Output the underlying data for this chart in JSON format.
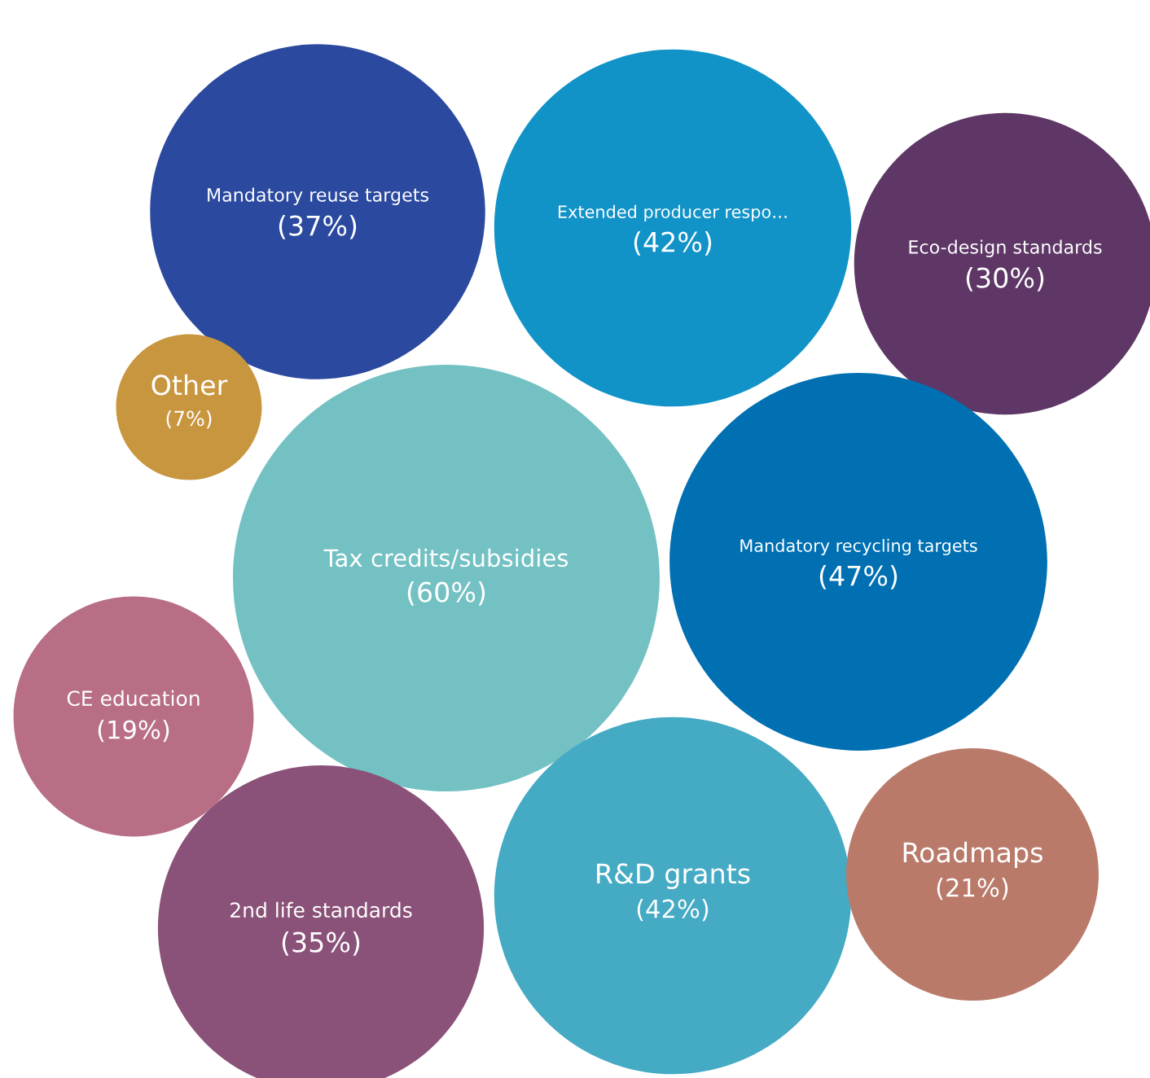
{
  "chart_data": {
    "type": "other",
    "categories": [
      "Mandatory reuse targets",
      "Extended producer respo…",
      "Eco-design standards",
      "Other",
      "Tax credits/subsidies",
      "Mandatory recycling targets",
      "CE education",
      "2nd life standards",
      "R&D grants",
      "Roadmaps"
    ],
    "values": [
      37,
      42,
      30,
      7,
      60,
      47,
      19,
      35,
      42,
      21
    ],
    "value_labels": [
      "(37%)",
      "(42%)",
      "(30%)",
      "(7%)",
      "(60%)",
      "(47%)",
      "(19%)",
      "(35%)",
      "(42%)",
      "(21%)"
    ],
    "colors": [
      "#2b4a9f",
      "#1193c8",
      "#5e3766",
      "#c99640",
      "#74c1c3",
      "#0070b3",
      "#b86f86",
      "#8a5278",
      "#45aac4",
      "#b97a6a"
    ]
  }
}
